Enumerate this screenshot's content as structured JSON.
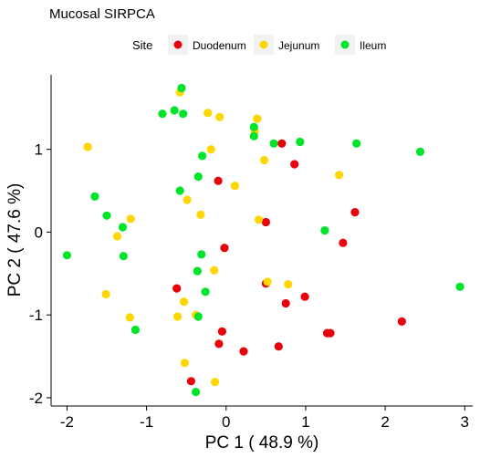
{
  "chart_data": {
    "type": "scatter",
    "title": "Mucosal SIRPCA",
    "xlabel": "PC 1 ( 48.9 %)",
    "ylabel": "PC 2 ( 47.6 %)",
    "xlim": [
      -2.2,
      3.1
    ],
    "ylim": [
      -2.1,
      1.9
    ],
    "xticks": [
      -2,
      -1,
      0,
      1,
      2,
      3
    ],
    "yticks": [
      -2,
      -1,
      0,
      1
    ],
    "grid": false,
    "legend": {
      "title": "Site",
      "position": "top"
    },
    "series": [
      {
        "name": "Duodenum",
        "color": "#e8000b",
        "points": [
          [
            0.7,
            1.07
          ],
          [
            0.86,
            0.82
          ],
          [
            -0.1,
            0.62
          ],
          [
            0.5,
            0.12
          ],
          [
            1.62,
            0.24
          ],
          [
            1.47,
            -0.13
          ],
          [
            -0.02,
            -0.19
          ],
          [
            -0.62,
            -0.68
          ],
          [
            0.5,
            -0.62
          ],
          [
            0.99,
            -0.78
          ],
          [
            0.75,
            -0.86
          ],
          [
            -0.05,
            -1.2
          ],
          [
            -0.09,
            -1.35
          ],
          [
            1.27,
            -1.22
          ],
          [
            1.31,
            -1.22
          ],
          [
            2.21,
            -1.08
          ],
          [
            0.22,
            -1.44
          ],
          [
            0.66,
            -1.38
          ],
          [
            -0.44,
            -1.8
          ]
        ]
      },
      {
        "name": "Jejunum",
        "color": "#ffd600",
        "points": [
          [
            -0.58,
            1.69
          ],
          [
            -0.23,
            1.44
          ],
          [
            -0.08,
            1.39
          ],
          [
            0.39,
            1.37
          ],
          [
            0.36,
            1.22
          ],
          [
            -1.74,
            1.03
          ],
          [
            -0.19,
            1.0
          ],
          [
            0.48,
            0.87
          ],
          [
            1.42,
            0.69
          ],
          [
            0.11,
            0.56
          ],
          [
            -0.49,
            0.39
          ],
          [
            -0.32,
            0.21
          ],
          [
            -1.2,
            0.16
          ],
          [
            0.41,
            0.15
          ],
          [
            -1.37,
            -0.05
          ],
          [
            -0.15,
            -0.46
          ],
          [
            0.52,
            -0.6
          ],
          [
            0.78,
            -0.63
          ],
          [
            -1.51,
            -0.75
          ],
          [
            -0.53,
            -0.84
          ],
          [
            -0.61,
            -1.02
          ],
          [
            -0.38,
            -1.0
          ],
          [
            -1.21,
            -1.03
          ],
          [
            -0.52,
            -1.58
          ],
          [
            -0.14,
            -1.81
          ]
        ]
      },
      {
        "name": "Ileum",
        "color": "#00e52a",
        "points": [
          [
            -0.56,
            1.74
          ],
          [
            -0.8,
            1.43
          ],
          [
            -0.65,
            1.47
          ],
          [
            -0.54,
            1.43
          ],
          [
            0.35,
            1.27
          ],
          [
            0.35,
            1.16
          ],
          [
            0.6,
            1.07
          ],
          [
            0.93,
            1.09
          ],
          [
            1.64,
            1.07
          ],
          [
            2.44,
            0.97
          ],
          [
            -0.3,
            0.92
          ],
          [
            -0.35,
            0.67
          ],
          [
            -0.58,
            0.5
          ],
          [
            -1.65,
            0.43
          ],
          [
            -1.5,
            0.2
          ],
          [
            -1.3,
            0.06
          ],
          [
            1.24,
            0.02
          ],
          [
            -2.0,
            -0.28
          ],
          [
            -1.29,
            -0.29
          ],
          [
            -0.31,
            -0.27
          ],
          [
            -0.36,
            -0.47
          ],
          [
            -0.26,
            -0.72
          ],
          [
            2.94,
            -0.66
          ],
          [
            -0.35,
            -1.02
          ],
          [
            -1.14,
            -1.18
          ],
          [
            -0.38,
            -1.93
          ]
        ]
      }
    ]
  }
}
